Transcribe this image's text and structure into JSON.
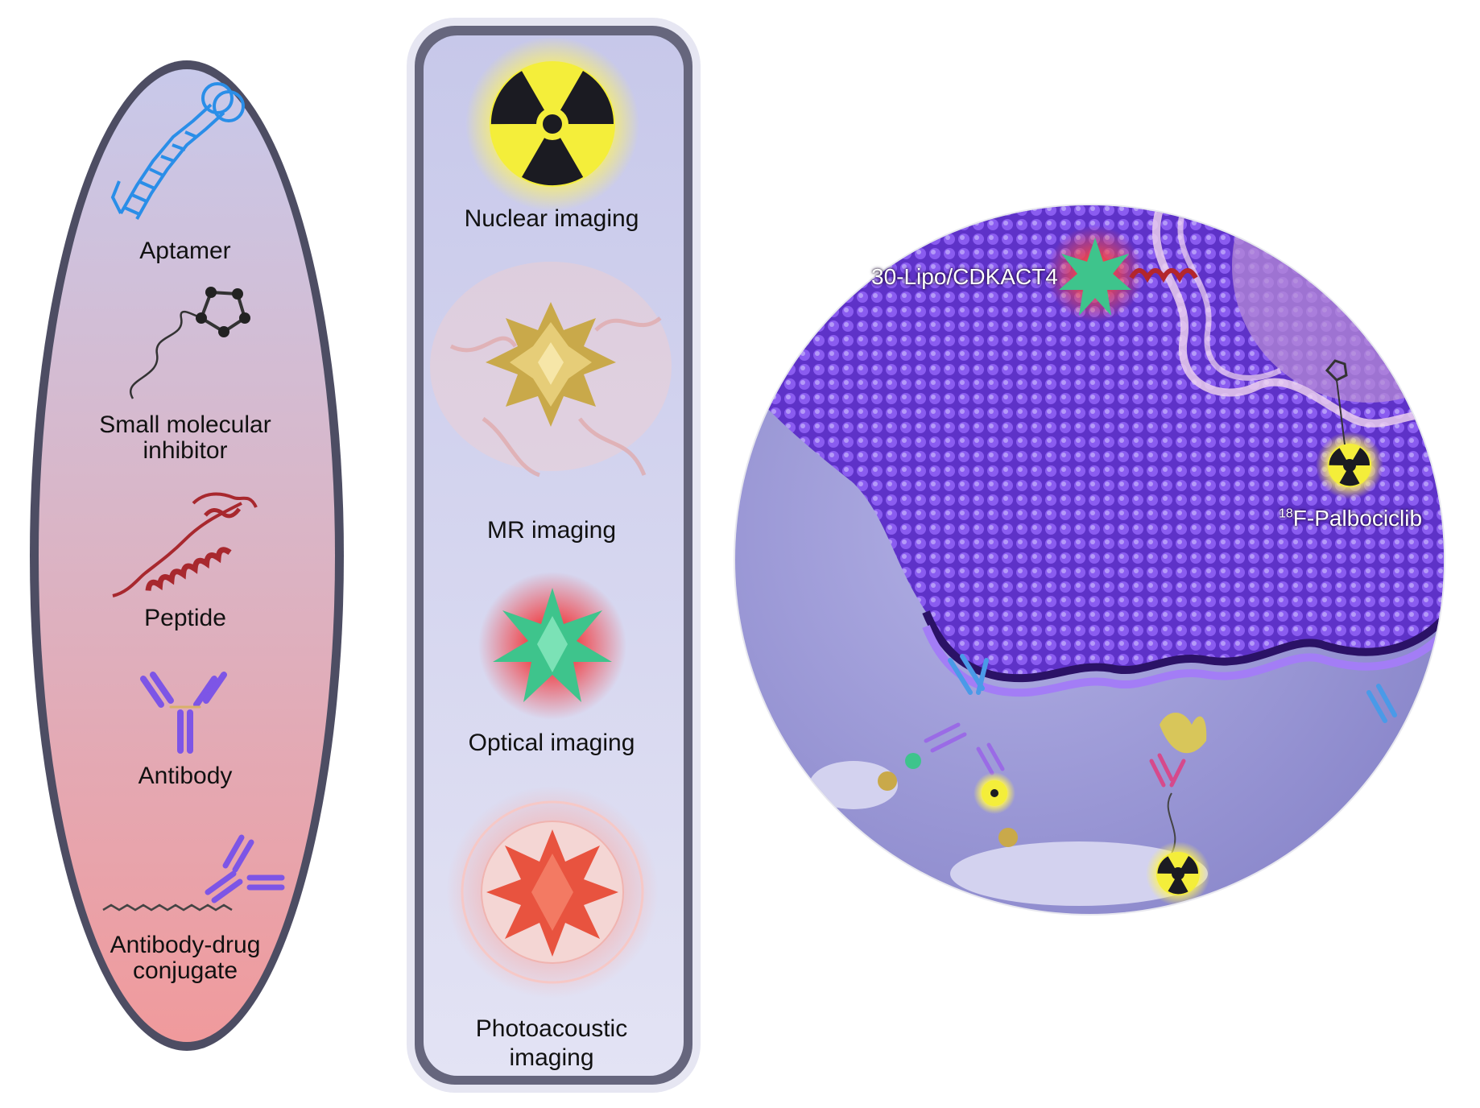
{
  "left_panel": {
    "items": [
      {
        "label": "Aptamer",
        "icon": "aptamer-icon"
      },
      {
        "label": "Small molecular\ninhibitor",
        "icon": "small-molecule-icon"
      },
      {
        "label": "Peptide",
        "icon": "peptide-icon"
      },
      {
        "label": "Antibody",
        "icon": "antibody-icon"
      },
      {
        "label": "Antibody-drug\nconjugate",
        "icon": "adc-icon"
      }
    ],
    "gradient_top": "#c8c9ea",
    "gradient_bottom": "#f09a9c"
  },
  "middle_panel": {
    "items": [
      {
        "label": "Nuclear imaging",
        "icon": "radiation-icon"
      },
      {
        "label": "MR imaging",
        "icon": "gold-nanoparticle-icon"
      },
      {
        "label": "Optical imaging",
        "icon": "green-star-icon"
      },
      {
        "label": "Photoacoustic\nimaging",
        "icon": "red-star-icon"
      }
    ],
    "frame_color": "#6b6b82"
  },
  "right_panel": {
    "labels": {
      "probe_top": "30-Lipo/CDKACT4",
      "isotope_mass": "18",
      "palbociclib": "F-Palbociclib"
    },
    "membrane_color": "#6a3ed6",
    "background_color": "#9a98d6"
  }
}
